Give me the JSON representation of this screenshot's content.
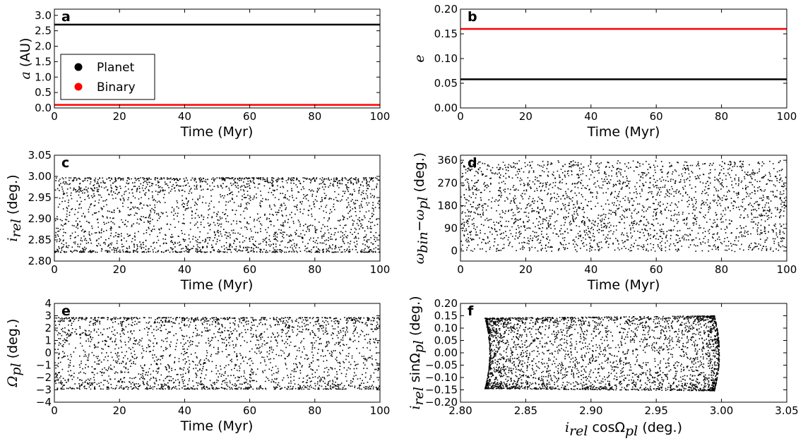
{
  "figure": {
    "legend": {
      "items": [
        {
          "label": "Planet",
          "color": "#000000"
        },
        {
          "label": "Binary",
          "color": "#ff0000"
        }
      ]
    }
  },
  "chart_data": [
    {
      "panel": "a",
      "type": "line",
      "title": "",
      "xlabel": "Time (Myr)",
      "ylabel": "a (AU)",
      "xlim": [
        0,
        100
      ],
      "ylim": [
        0.0,
        3.2
      ],
      "xticks": [
        0,
        20,
        40,
        60,
        80,
        100
      ],
      "yticks": [
        0.0,
        0.5,
        1.0,
        1.5,
        2.0,
        2.5,
        3.0
      ],
      "ytick_labels": [
        "0.0",
        "0.5",
        "1.0",
        "1.5",
        "2.0",
        "2.5",
        "3.0"
      ],
      "series": [
        {
          "name": "Planet",
          "color": "#000000",
          "x": [
            0,
            100
          ],
          "y": [
            2.7,
            2.7
          ]
        },
        {
          "name": "Binary",
          "color": "#ff0000",
          "x": [
            0,
            100
          ],
          "y": [
            0.1,
            0.1
          ]
        }
      ],
      "legend": "center-left"
    },
    {
      "panel": "b",
      "type": "line",
      "title": "",
      "xlabel": "Time (Myr)",
      "ylabel": "e",
      "xlim": [
        0,
        100
      ],
      "ylim": [
        0.0,
        0.2
      ],
      "xticks": [
        0,
        20,
        40,
        60,
        80,
        100
      ],
      "yticks": [
        0.0,
        0.05,
        0.1,
        0.15,
        0.2
      ],
      "ytick_labels": [
        "0.00",
        "0.05",
        "0.10",
        "0.15",
        "0.20"
      ],
      "series": [
        {
          "name": "Planet",
          "color": "#000000",
          "x": [
            0,
            100
          ],
          "y": [
            0.058,
            0.058
          ]
        },
        {
          "name": "Binary",
          "color": "#ff0000",
          "x": [
            0,
            100
          ],
          "y": [
            0.16,
            0.16
          ]
        }
      ]
    },
    {
      "panel": "c",
      "type": "scatter",
      "title": "",
      "xlabel": "Time (Myr)",
      "ylabel": "i_rel (deg.)",
      "xlim": [
        0,
        100
      ],
      "ylim": [
        2.8,
        3.05
      ],
      "xticks": [
        0,
        20,
        40,
        60,
        80,
        100
      ],
      "yticks": [
        2.8,
        2.85,
        2.9,
        2.95,
        3.0,
        3.05
      ],
      "ytick_labels": [
        "2.80",
        "2.85",
        "2.90",
        "2.95",
        "3.00",
        "3.05"
      ],
      "scatter": {
        "kind": "oscillation",
        "center": 2.91,
        "amplitude": 0.088,
        "x_range": [
          0,
          100
        ],
        "n_points": 2400,
        "color": "#000000"
      }
    },
    {
      "panel": "d",
      "type": "scatter",
      "title": "",
      "xlabel": "Time (Myr)",
      "ylabel": "ω_bin − ω_pl (deg.)",
      "xlim": [
        0,
        100
      ],
      "ylim": [
        -40,
        380
      ],
      "xticks": [
        0,
        20,
        40,
        60,
        80,
        100
      ],
      "yticks": [
        0,
        90,
        180,
        270,
        360
      ],
      "ytick_labels": [
        "0",
        "90",
        "180",
        "270",
        "360"
      ],
      "scatter": {
        "kind": "uniform",
        "y_range": [
          0,
          360
        ],
        "x_range": [
          0,
          100
        ],
        "n_points": 2400,
        "color": "#000000"
      }
    },
    {
      "panel": "e",
      "type": "scatter",
      "title": "",
      "xlabel": "Time (Myr)",
      "ylabel": "Ω_pl (deg.)",
      "xlim": [
        0,
        100
      ],
      "ylim": [
        -4,
        4
      ],
      "xticks": [
        0,
        20,
        40,
        60,
        80,
        100
      ],
      "yticks": [
        -4,
        -3,
        -2,
        -1,
        0,
        1,
        2,
        3,
        4
      ],
      "ytick_labels": [
        "−4",
        "−3",
        "−2",
        "−1",
        "0",
        "1",
        "2",
        "3",
        "4"
      ],
      "scatter": {
        "kind": "oscillation",
        "center": 0,
        "amplitude": 2.9,
        "x_range": [
          0,
          100
        ],
        "n_points": 2400,
        "color": "#000000"
      }
    },
    {
      "panel": "f",
      "type": "scatter",
      "title": "",
      "xlabel": "i_rel cosΩ_pl (deg.)",
      "ylabel": "i_rel sinΩ_pl (deg.)",
      "xlim": [
        2.8,
        3.05
      ],
      "ylim": [
        -0.2,
        0.2
      ],
      "xticks": [
        2.8,
        2.85,
        2.9,
        2.95,
        3.0,
        3.05
      ],
      "xtick_labels": [
        "2.80",
        "2.85",
        "2.90",
        "2.95",
        "3.00",
        "3.05"
      ],
      "yticks": [
        -0.2,
        -0.15,
        -0.1,
        -0.05,
        0.0,
        0.05,
        0.1,
        0.15,
        0.2
      ],
      "ytick_labels": [
        "−0.20",
        "−0.15",
        "−0.10",
        "−0.05",
        "0.00",
        "0.05",
        "0.10",
        "0.15",
        "0.20"
      ],
      "scatter": {
        "kind": "polar",
        "i_range": [
          2.822,
          2.998
        ],
        "omega_amplitude_deg": 2.9,
        "n_points": 3200,
        "color": "#000000"
      }
    }
  ]
}
